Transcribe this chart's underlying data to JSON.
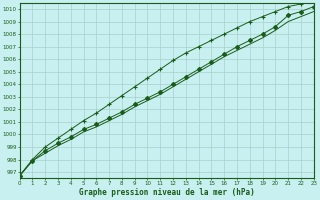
{
  "title": "Graphe pression niveau de la mer (hPa)",
  "xlim": [
    0,
    23
  ],
  "ylim": [
    996.5,
    1010.5
  ],
  "yticks": [
    997,
    998,
    999,
    1000,
    1001,
    1002,
    1003,
    1004,
    1005,
    1006,
    1007,
    1008,
    1009,
    1010
  ],
  "xticks": [
    0,
    1,
    2,
    3,
    4,
    5,
    6,
    7,
    8,
    9,
    10,
    11,
    12,
    13,
    14,
    15,
    16,
    17,
    18,
    19,
    20,
    21,
    22,
    23
  ],
  "bg_color": "#c8f0f0",
  "grid_color": "#a8d0cc",
  "line_color": "#1a5c1a",
  "marker_color": "#1a5c1a",
  "line1_x": [
    0,
    1,
    2,
    3,
    4,
    5,
    6,
    7,
    8,
    9,
    10,
    11,
    12,
    13,
    14,
    15,
    16,
    17,
    18,
    19,
    20,
    21,
    22,
    23
  ],
  "line1_y": [
    996.7,
    997.9,
    998.7,
    999.3,
    999.8,
    1000.4,
    1000.8,
    1001.3,
    1001.8,
    1002.4,
    1002.9,
    1003.4,
    1004.0,
    1004.6,
    1005.2,
    1005.8,
    1006.4,
    1007.0,
    1007.5,
    1008.0,
    1008.6,
    1009.5,
    1009.8,
    1010.2
  ],
  "line2_x": [
    0,
    1,
    2,
    3,
    4,
    5,
    6,
    7,
    8,
    9,
    10,
    11,
    12,
    13,
    14,
    15,
    16,
    17,
    18,
    19,
    20,
    21,
    22,
    23
  ],
  "line2_y": [
    996.7,
    997.9,
    998.5,
    999.1,
    999.6,
    1000.2,
    1000.6,
    1001.1,
    1001.6,
    1002.2,
    1002.7,
    1003.2,
    1003.8,
    1004.4,
    1005.0,
    1005.6,
    1006.2,
    1006.7,
    1007.2,
    1007.7,
    1008.3,
    1009.0,
    1009.4,
    1009.8
  ],
  "line3_x": [
    0,
    1,
    2,
    3,
    4,
    5,
    6,
    7,
    8,
    9,
    10,
    11,
    12,
    13,
    14,
    15,
    16,
    17,
    18,
    19,
    20,
    21,
    22,
    23
  ],
  "line3_y": [
    996.7,
    998.0,
    999.0,
    999.7,
    1000.4,
    1001.1,
    1001.7,
    1002.4,
    1003.1,
    1003.8,
    1004.5,
    1005.2,
    1005.9,
    1006.5,
    1007.0,
    1007.5,
    1008.0,
    1008.5,
    1009.0,
    1009.4,
    1009.8,
    1010.2,
    1010.4,
    1010.6
  ]
}
